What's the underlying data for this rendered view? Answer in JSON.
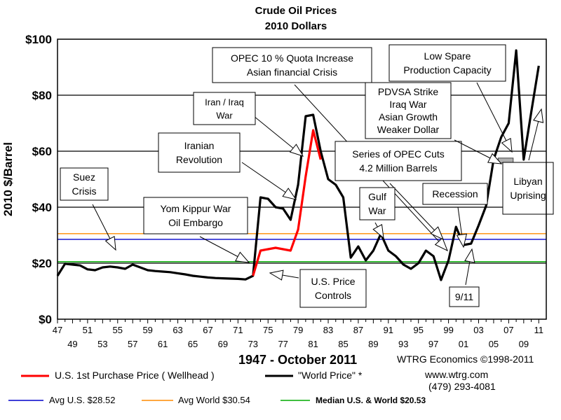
{
  "chart_data": {
    "type": "line",
    "title": "Crude Oil Prices",
    "subtitle": "2010 Dollars",
    "xlabel": "1947 - October 2011",
    "ylabel": "2010 $/Barrel",
    "ylim": [
      0,
      100
    ],
    "xlim": [
      1947,
      2012
    ],
    "y_ticks": [
      0,
      20,
      40,
      60,
      80,
      100
    ],
    "y_tick_labels": [
      "$0",
      "$20",
      "$40",
      "$60",
      "$80",
      "$100"
    ],
    "x_ticks_upper": [
      "47",
      "51",
      "55",
      "59",
      "63",
      "67",
      "71",
      "75",
      "79",
      "83",
      "87",
      "91",
      "95",
      "99",
      "03",
      "07",
      "11"
    ],
    "x_ticks_lower": [
      "49",
      "53",
      "57",
      "61",
      "65",
      "69",
      "73",
      "77",
      "81",
      "85",
      "89",
      "93",
      "97",
      "01",
      "05",
      "09"
    ],
    "grid": "horizontal",
    "series": [
      {
        "name": "\"World Price\" *",
        "color": "#000000",
        "x": [
          1947,
          1948,
          1949,
          1950,
          1951,
          1952,
          1953,
          1954,
          1955,
          1956,
          1957,
          1958,
          1959,
          1960,
          1961,
          1962,
          1963,
          1964,
          1965,
          1966,
          1967,
          1968,
          1969,
          1970,
          1971,
          1972,
          1973,
          1974,
          1975,
          1976,
          1977,
          1978,
          1979,
          1980,
          1981,
          1982,
          1983,
          1984,
          1985,
          1986,
          1987,
          1988,
          1989,
          1990,
          1991,
          1992,
          1993,
          1994,
          1995,
          1996,
          1997,
          1998,
          1999,
          2000,
          2001,
          2002,
          2003,
          2004,
          2005,
          2006,
          2007,
          2008,
          2009,
          2010,
          2011
        ],
        "values": [
          15.5,
          19.8,
          19.5,
          19.2,
          17.8,
          17.5,
          18.5,
          18.8,
          18.5,
          18.0,
          19.5,
          18.5,
          17.5,
          17.2,
          17.0,
          16.8,
          16.4,
          16.0,
          15.5,
          15.2,
          14.9,
          14.7,
          14.6,
          14.5,
          14.4,
          14.2,
          15.5,
          43.5,
          43.0,
          40.0,
          39.5,
          35.5,
          48.0,
          72.5,
          73.0,
          60.0,
          50.0,
          48.0,
          43.5,
          22.0,
          26.0,
          21.0,
          24.5,
          30.5,
          24.5,
          22.5,
          19.5,
          18.0,
          20.0,
          24.5,
          22.5,
          14.0,
          21.0,
          33.0,
          26.5,
          27.0,
          33.5,
          40.5,
          57.0,
          65.0,
          70.0,
          96.0,
          57.0,
          74.0,
          90.5
        ]
      },
      {
        "name": "U.S. 1st Purchase Price ( Wellhead )",
        "color": "#ff0000",
        "x": [
          1973,
          1974,
          1975,
          1976,
          1977,
          1978,
          1979,
          1980,
          1981,
          1982
        ],
        "values": [
          15.5,
          24.5,
          25.0,
          25.5,
          25.0,
          24.5,
          32.0,
          51.0,
          67.5,
          57.0
        ]
      }
    ],
    "reference_lines": [
      {
        "name": "Avg U.S. $28.52",
        "value": 28.52,
        "color": "#0000cc"
      },
      {
        "name": "Avg World $30.54",
        "value": 30.54,
        "color": "#ff8c00"
      },
      {
        "name": "Median U.S. & World  $20.53",
        "value": 20.53,
        "color": "#00aa00"
      }
    ],
    "spare_capacity_bar": {
      "from": 2005.6,
      "to": 2007.6,
      "value": 56.8,
      "color": "#b0b0b0"
    },
    "annotations": [
      {
        "id": "suez",
        "lines": [
          "Suez",
          "Crisis"
        ]
      },
      {
        "id": "yom-kippur",
        "lines": [
          "Yom Kippur War",
          "Oil Embargo"
        ]
      },
      {
        "id": "iranian-revolution",
        "lines": [
          "Iranian",
          "Revolution"
        ]
      },
      {
        "id": "iran-iraq",
        "lines": [
          "Iran / Iraq",
          "War"
        ]
      },
      {
        "id": "us-price-controls",
        "lines": [
          "U.S. Price",
          "Controls"
        ]
      },
      {
        "id": "opec-quota",
        "lines": [
          "OPEC 10 % Quota Increase",
          "Asian financial Crisis"
        ]
      },
      {
        "id": "opec-cuts",
        "lines": [
          "Series of OPEC Cuts",
          "4.2 Million Barrels"
        ]
      },
      {
        "id": "gulf-war",
        "lines": [
          "Gulf",
          "War"
        ]
      },
      {
        "id": "recession",
        "lines": [
          "Recession"
        ]
      },
      {
        "id": "nine-eleven",
        "lines": [
          "9/11"
        ]
      },
      {
        "id": "pdvsa",
        "lines": [
          "PDVSA Strike",
          "Iraq War",
          "Asian Growth",
          "Weaker Dollar"
        ]
      },
      {
        "id": "low-spare",
        "lines": [
          "Low Spare",
          "Production Capacity"
        ]
      },
      {
        "id": "libyan",
        "lines": [
          "Libyan",
          "Uprising"
        ]
      }
    ]
  },
  "footer": {
    "period": "1947 - October 2011",
    "company": "WTRG Economics  ©1998-2011",
    "website": "www.wtrg.com",
    "phone": "(479) 293-4081"
  },
  "legend": {
    "us_price": "U.S. 1st Purchase Price ( Wellhead )",
    "world_price": "\"World Price\" *",
    "avg_us": "Avg U.S. $28.52",
    "avg_world": "Avg World $30.54",
    "median": "Median U.S. & World  $20.53"
  },
  "colors": {
    "world": "#000000",
    "us": "#ff0000",
    "avg_us": "#0000cc",
    "avg_world": "#ff8c00",
    "median": "#00aa00"
  }
}
